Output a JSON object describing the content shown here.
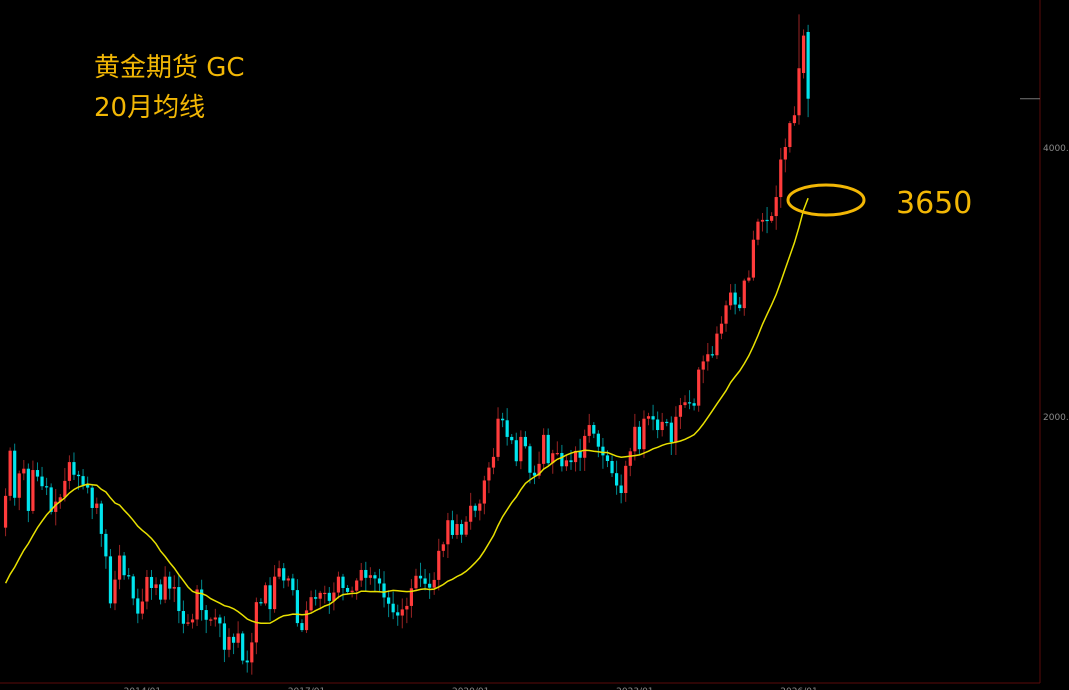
{
  "title": {
    "line1": "黄金期货 GC",
    "line2": "20月均线"
  },
  "annotation": {
    "label": "3650",
    "color": "#f2b705"
  },
  "colors": {
    "up": "#ff3b3b",
    "down": "#00e5ee",
    "ma": "#e8e000",
    "axis": "#5a0a0a",
    "tick_text": "#8a8a8a"
  },
  "chart_data": {
    "type": "candlestick",
    "y_scale": "log",
    "y_ticks": [
      "4000.0",
      "2000.0"
    ],
    "y_tick_values": [
      4000,
      2000
    ],
    "x_ticks": [
      "2014/01",
      "2017/01",
      "2020/01",
      "2023/01",
      "2026/01"
    ],
    "start_month": "2011/07",
    "first_open": 1500,
    "close": [
      1628,
      1829,
      1620,
      1725,
      1746,
      1566,
      1740,
      1711,
      1669,
      1664,
      1562,
      1604,
      1622,
      1692,
      1776,
      1719,
      1713,
      1675,
      1663,
      1578,
      1596,
      1476,
      1393,
      1234,
      1312,
      1396,
      1327,
      1323,
      1250,
      1202,
      1240,
      1321,
      1284,
      1296,
      1246,
      1322,
      1282,
      1287,
      1210,
      1171,
      1175,
      1184,
      1279,
      1213,
      1183,
      1184,
      1190,
      1172,
      1095,
      1132,
      1115,
      1142,
      1065,
      1060,
      1116,
      1238,
      1234,
      1293,
      1216,
      1322,
      1351,
      1309,
      1316,
      1277,
      1173,
      1152,
      1212,
      1254,
      1249,
      1268,
      1268,
      1242,
      1269,
      1322,
      1284,
      1271,
      1275,
      1309,
      1345,
      1318,
      1327,
      1316,
      1299,
      1253,
      1233,
      1206,
      1196,
      1215,
      1226,
      1283,
      1325,
      1316,
      1298,
      1285,
      1311,
      1413,
      1437,
      1529,
      1472,
      1514,
      1473,
      1523,
      1587,
      1567,
      1596,
      1694,
      1751,
      1800,
      1986,
      1978,
      1895,
      1879,
      1780,
      1895,
      1850,
      1728,
      1715,
      1768,
      1905,
      1771,
      1817,
      1818,
      1757,
      1784,
      1776,
      1828,
      1796,
      1900,
      1954,
      1911,
      1848,
      1807,
      1781,
      1726,
      1672,
      1640,
      1759,
      1826,
      1945,
      1836,
      1986,
      1999,
      1982,
      1929,
      1970,
      1966,
      1870,
      1996,
      2057,
      2072,
      2067,
      2054,
      2254,
      2302,
      2345,
      2339,
      2473,
      2537,
      2660,
      2749,
      2665,
      2641,
      2835,
      2857,
      3150,
      3300,
      3315,
      3307,
      3348,
      3516,
      3873,
      4000,
      4254,
      4341,
      4900,
      5330,
      4530
    ],
    "overrides": {
      "174": {
        "high": 5630
      },
      "175": {
        "open": 4840
      },
      "176": {
        "open": 5380,
        "high": 5480,
        "low": 4320
      }
    },
    "ma20_start": [
      1300,
      1330,
      1355,
      1385,
      1415,
      1440,
      1470,
      1500,
      1525,
      1550,
      1570,
      1590,
      1605,
      1620,
      1640,
      1655,
      1665,
      1672,
      1678
    ],
    "ma_period": 20,
    "series": [
      {
        "name": "20月均线"
      }
    ],
    "highlight_level": 3650
  }
}
